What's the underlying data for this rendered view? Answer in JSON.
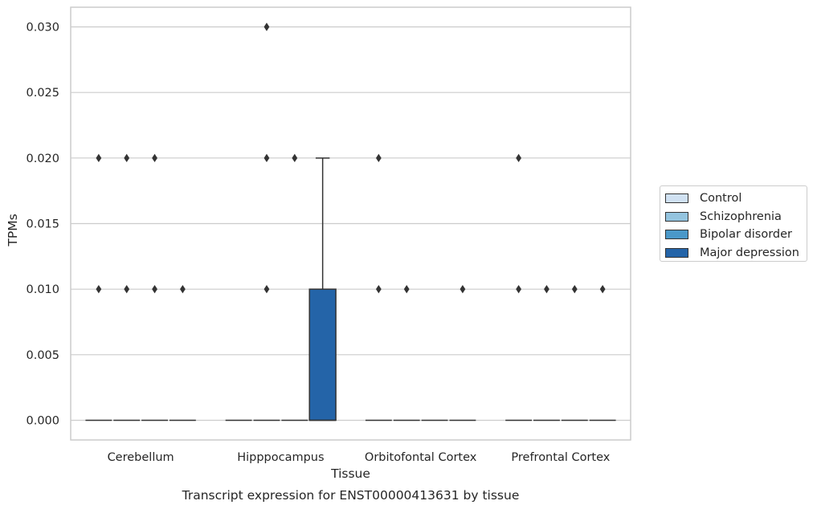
{
  "chart_data": {
    "type": "box",
    "title": "Transcript expression for ENST00000413631 by tissue",
    "xlabel": "Tissue",
    "ylabel": "TPMs",
    "ylim": [
      -0.0015,
      0.0315
    ],
    "yticks": [
      0.0,
      0.005,
      0.01,
      0.015,
      0.02,
      0.025,
      0.03
    ],
    "ytick_labels": [
      "0.000",
      "0.005",
      "0.010",
      "0.015",
      "0.020",
      "0.025",
      "0.030"
    ],
    "grid": "horizontal",
    "legend_position": "right",
    "categories": [
      "Cerebellum",
      "Hipppocampus",
      "Orbitofontal Cortex",
      "Prefrontal Cortex"
    ],
    "series": [
      {
        "name": "Control",
        "color": "#d0e1f2",
        "boxes": [
          {
            "q1": 0,
            "median": 0,
            "q3": 0,
            "whisker_low": 0,
            "whisker_high": 0,
            "outliers": [
              0.01,
              0.02
            ]
          },
          {
            "q1": 0,
            "median": 0,
            "q3": 0,
            "whisker_low": 0,
            "whisker_high": 0,
            "outliers": []
          },
          {
            "q1": 0,
            "median": 0,
            "q3": 0,
            "whisker_low": 0,
            "whisker_high": 0,
            "outliers": [
              0.01,
              0.02
            ]
          },
          {
            "q1": 0,
            "median": 0,
            "q3": 0,
            "whisker_low": 0,
            "whisker_high": 0,
            "outliers": [
              0.01,
              0.02
            ]
          }
        ]
      },
      {
        "name": "Schizophrenia",
        "color": "#94c4df",
        "boxes": [
          {
            "q1": 0,
            "median": 0,
            "q3": 0,
            "whisker_low": 0,
            "whisker_high": 0,
            "outliers": [
              0.01,
              0.02
            ]
          },
          {
            "q1": 0,
            "median": 0,
            "q3": 0,
            "whisker_low": 0,
            "whisker_high": 0,
            "outliers": [
              0.01,
              0.02,
              0.03
            ]
          },
          {
            "q1": 0,
            "median": 0,
            "q3": 0,
            "whisker_low": 0,
            "whisker_high": 0,
            "outliers": [
              0.01
            ]
          },
          {
            "q1": 0,
            "median": 0,
            "q3": 0,
            "whisker_low": 0,
            "whisker_high": 0,
            "outliers": [
              0.01
            ]
          }
        ]
      },
      {
        "name": "Bipolar disorder",
        "color": "#4a98c9",
        "boxes": [
          {
            "q1": 0,
            "median": 0,
            "q3": 0,
            "whisker_low": 0,
            "whisker_high": 0,
            "outliers": [
              0.01,
              0.02
            ]
          },
          {
            "q1": 0,
            "median": 0,
            "q3": 0,
            "whisker_low": 0,
            "whisker_high": 0,
            "outliers": [
              0.02
            ]
          },
          {
            "q1": 0,
            "median": 0,
            "q3": 0,
            "whisker_low": 0,
            "whisker_high": 0,
            "outliers": []
          },
          {
            "q1": 0,
            "median": 0,
            "q3": 0,
            "whisker_low": 0,
            "whisker_high": 0,
            "outliers": [
              0.01
            ]
          }
        ]
      },
      {
        "name": "Major depression",
        "color": "#2464a8",
        "boxes": [
          {
            "q1": 0,
            "median": 0,
            "q3": 0,
            "whisker_low": 0,
            "whisker_high": 0,
            "outliers": [
              0.01
            ]
          },
          {
            "q1": 0,
            "median": 0,
            "q3": 0.01,
            "whisker_low": 0,
            "whisker_high": 0.02,
            "outliers": []
          },
          {
            "q1": 0,
            "median": 0,
            "q3": 0,
            "whisker_low": 0,
            "whisker_high": 0,
            "outliers": [
              0.01
            ]
          },
          {
            "q1": 0,
            "median": 0,
            "q3": 0,
            "whisker_low": 0,
            "whisker_high": 0,
            "outliers": [
              0.01
            ]
          }
        ]
      }
    ]
  }
}
